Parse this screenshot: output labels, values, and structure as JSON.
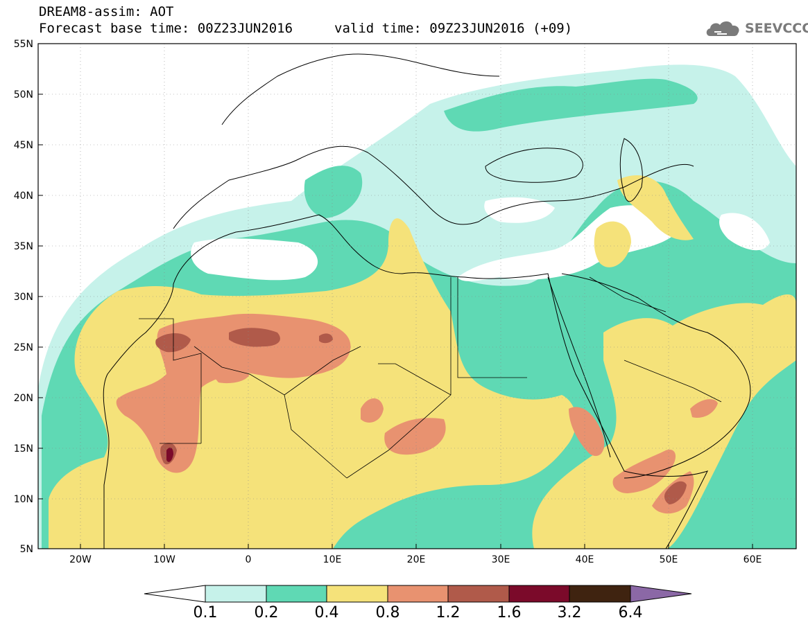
{
  "header": {
    "line1": "DREAM8-assim: AOT",
    "line2": "Forecast base time: 00Z23JUN2016",
    "valid": "valid time: 09Z23JUN2016 (+09)"
  },
  "logo": {
    "text": "SEEVCCC",
    "icon": "cloud-icon",
    "color": "#7a7a7a"
  },
  "map": {
    "lat_range": [
      5,
      55
    ],
    "lon_range": [
      -25,
      65
    ],
    "lat_ticks": [
      "55N",
      "50N",
      "45N",
      "40N",
      "35N",
      "30N",
      "25N",
      "20N",
      "15N",
      "10N",
      "5N"
    ],
    "lon_ticks": [
      "20W",
      "10W",
      "0",
      "10E",
      "20E",
      "30E",
      "40E",
      "50E",
      "60E"
    ]
  },
  "colorbar": {
    "levels": [
      "0.1",
      "0.2",
      "0.4",
      "0.8",
      "1.2",
      "1.6",
      "3.2",
      "6.4"
    ],
    "colors": [
      "#ffffff",
      "#c6f2ea",
      "#5fd9b4",
      "#f5e27a",
      "#e89270",
      "#b05a4a",
      "#7b0a2a",
      "#3f2310",
      "#8b68a6"
    ]
  }
}
